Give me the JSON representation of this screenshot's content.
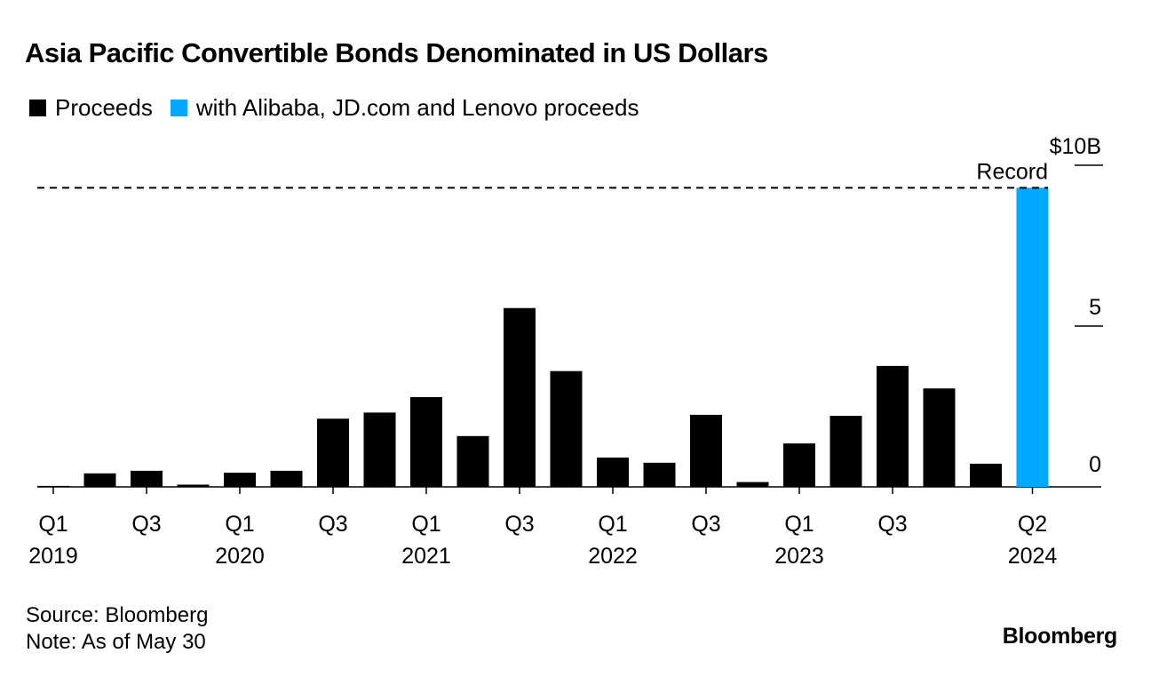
{
  "title": "Asia Pacific Convertible Bonds Denominated in US Dollars",
  "colors": {
    "primary": "#000000",
    "highlight": "#00a8ff",
    "background": "#ffffff"
  },
  "legend": [
    {
      "label": "Proceeds",
      "color": "#000000"
    },
    {
      "label": "with Alibaba, JD.com and Lenovo proceeds",
      "color": "#00a8ff"
    }
  ],
  "chart_data": {
    "type": "bar",
    "categories": [
      "Q1 2019",
      "Q2 2019",
      "Q3 2019",
      "Q4 2019",
      "Q1 2020",
      "Q2 2020",
      "Q3 2020",
      "Q4 2020",
      "Q1 2021",
      "Q2 2021",
      "Q3 2021",
      "Q4 2021",
      "Q1 2022",
      "Q2 2022",
      "Q3 2022",
      "Q4 2022",
      "Q1 2023",
      "Q2 2023",
      "Q3 2023",
      "Q4 2023",
      "Q1 2024",
      "Q2 2024"
    ],
    "series": [
      {
        "name": "Proceeds",
        "values": [
          0.03,
          0.42,
          0.5,
          0.07,
          0.44,
          0.5,
          2.12,
          2.31,
          2.79,
          1.58,
          5.56,
          3.6,
          0.91,
          0.75,
          2.24,
          0.15,
          1.35,
          2.21,
          3.76,
          3.06,
          0.72,
          null
        ]
      },
      {
        "name": "with Alibaba, JD.com and Lenovo proceeds",
        "values": [
          null,
          null,
          null,
          null,
          null,
          null,
          null,
          null,
          null,
          null,
          null,
          null,
          null,
          null,
          null,
          null,
          null,
          null,
          null,
          null,
          null,
          9.3
        ]
      }
    ],
    "ylim": [
      0,
      10
    ],
    "yticks": [
      {
        "value": 0,
        "label": "0"
      },
      {
        "value": 5,
        "label": "5"
      },
      {
        "value": 10,
        "label": "$10B"
      }
    ],
    "xticks": [
      {
        "index": 0,
        "q": "Q1",
        "year": "2019"
      },
      {
        "index": 2,
        "q": "Q3",
        "year": ""
      },
      {
        "index": 4,
        "q": "Q1",
        "year": "2020"
      },
      {
        "index": 6,
        "q": "Q3",
        "year": ""
      },
      {
        "index": 8,
        "q": "Q1",
        "year": "2021"
      },
      {
        "index": 10,
        "q": "Q3",
        "year": ""
      },
      {
        "index": 12,
        "q": "Q1",
        "year": "2022"
      },
      {
        "index": 14,
        "q": "Q3",
        "year": ""
      },
      {
        "index": 16,
        "q": "Q1",
        "year": "2023"
      },
      {
        "index": 18,
        "q": "Q3",
        "year": ""
      },
      {
        "index": 21,
        "q": "Q2",
        "year": "2024"
      }
    ],
    "reference_line": {
      "value": 9.3,
      "label": "Record",
      "style": "dashed"
    },
    "grid": false,
    "legend_position": "top-left"
  },
  "footer": {
    "source": "Source: Bloomberg",
    "note": "Note: As of May 30"
  },
  "brand": "Bloomberg"
}
